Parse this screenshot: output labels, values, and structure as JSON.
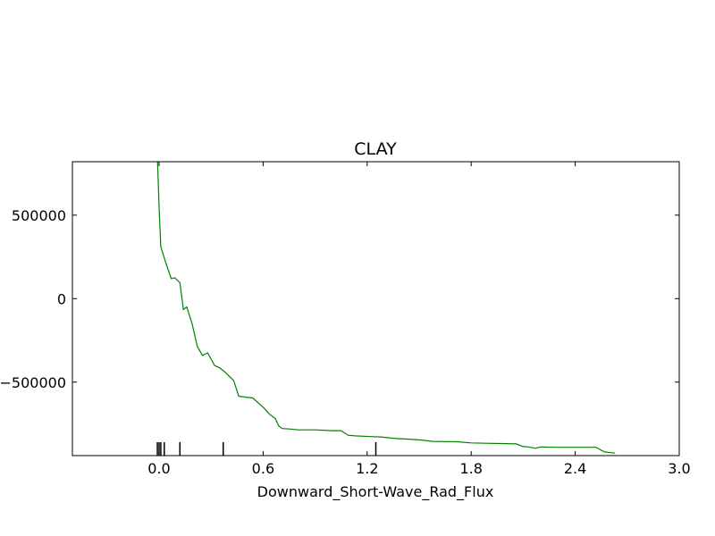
{
  "chart_data": {
    "type": "line",
    "title": "CLAY",
    "xlabel": "Downward_Short-Wave_Rad_Flux",
    "ylabel": "",
    "xlim": [
      -0.5,
      3.0
    ],
    "ylim": [
      -940000,
      820000
    ],
    "x_ticks": [
      0.0,
      0.6,
      1.2,
      1.8,
      2.4,
      3.0
    ],
    "x_tick_labels": [
      "0.0",
      "0.6",
      "1.2",
      "1.8",
      "2.4",
      "3.0"
    ],
    "y_ticks": [
      500000,
      0,
      -500000
    ],
    "y_tick_labels": [
      "500000",
      "0",
      "−500000"
    ],
    "grid": false,
    "line_color": "#008000",
    "series": [
      {
        "x": [
          -0.01,
          0.0,
          0.01,
          0.04,
          0.07,
          0.09,
          0.12,
          0.14,
          0.16,
          0.19,
          0.22,
          0.25,
          0.28,
          0.32,
          0.35,
          0.38,
          0.43,
          0.46,
          0.54,
          0.6,
          0.64,
          0.67,
          0.69,
          0.71,
          0.76,
          0.8,
          0.9,
          1.0,
          1.05,
          1.09,
          1.13,
          1.22,
          1.28,
          1.35,
          1.43,
          1.5,
          1.58,
          1.72,
          1.8,
          1.88,
          1.97,
          2.06,
          2.1,
          2.13,
          2.17,
          2.2,
          2.3,
          2.35,
          2.44,
          2.52,
          2.55,
          2.57,
          2.59,
          2.63
        ],
        "y": [
          850000,
          550000,
          310000,
          210000,
          120000,
          125000,
          95000,
          -65000,
          -50000,
          -150000,
          -285000,
          -340000,
          -325000,
          -400000,
          -415000,
          -440000,
          -490000,
          -585000,
          -595000,
          -650000,
          -695000,
          -718000,
          -763000,
          -778000,
          -781000,
          -786000,
          -786000,
          -791000,
          -791000,
          -818000,
          -822000,
          -826000,
          -828000,
          -836000,
          -841000,
          -846000,
          -855000,
          -857000,
          -864000,
          -866000,
          -868000,
          -870000,
          -886000,
          -888000,
          -896000,
          -888000,
          -890000,
          -890000,
          -890000,
          -890000,
          -908000,
          -918000,
          -920000,
          -925000
        ]
      }
    ],
    "rug": [
      -0.01,
      0.0,
      0.01,
      0.03,
      0.12,
      0.37,
      1.25
    ]
  }
}
